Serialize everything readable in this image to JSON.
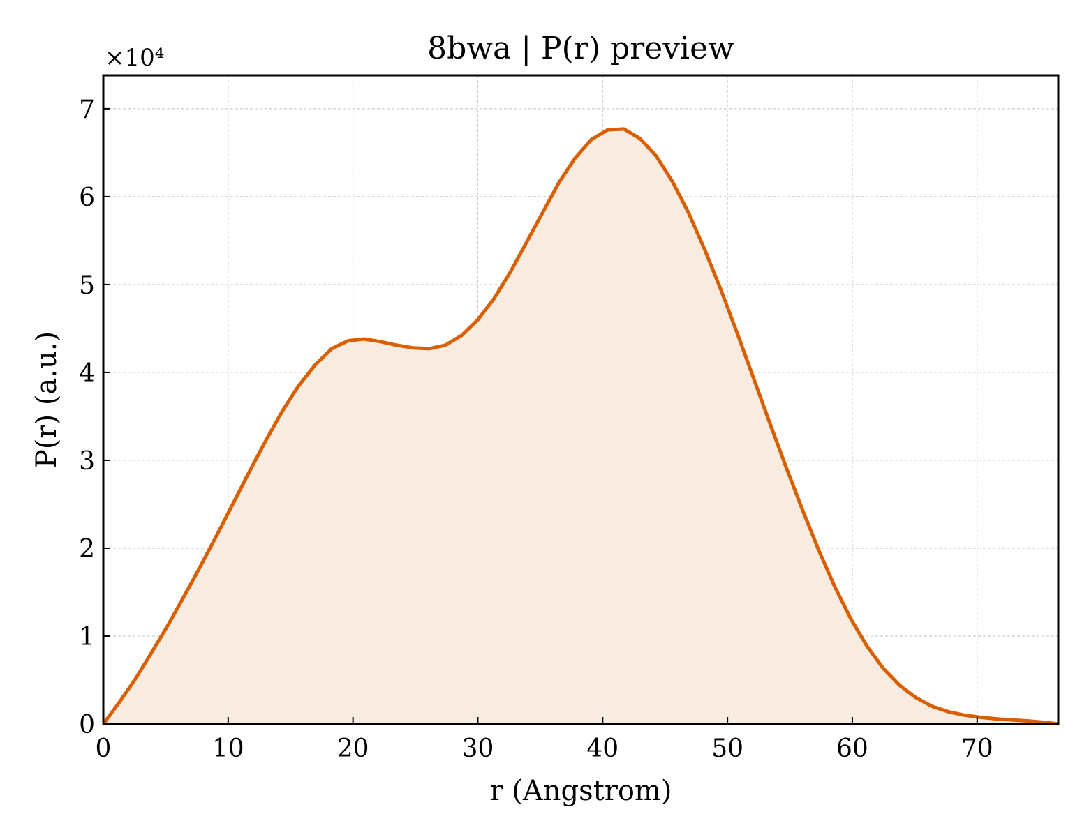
{
  "chart_data": {
    "type": "area",
    "title": "8bwa | P(r) preview",
    "xlabel": "r (Angstrom)",
    "ylabel": "P(r) (a.u.)",
    "y_multiplier_label": "×10⁴",
    "xlim": [
      0,
      76.5
    ],
    "ylim": [
      0,
      7.38
    ],
    "y_scale_factor": 10000,
    "xticks": [
      "0",
      "10",
      "20",
      "30",
      "40",
      "50",
      "60",
      "70"
    ],
    "yticks": [
      "0",
      "1",
      "2",
      "3",
      "4",
      "5",
      "6",
      "7"
    ],
    "grid": true,
    "line_color": "#d95f02",
    "fill_color": "#f8ebe0",
    "series": [
      {
        "x": [
          0,
          1.3,
          2.6,
          3.9,
          5.2,
          6.5,
          7.8,
          9.1,
          10.4,
          11.7,
          13.0,
          14.3,
          15.6,
          17.0,
          18.3,
          19.6,
          20.9,
          22.2,
          23.5,
          24.8,
          26.1,
          27.4,
          28.7,
          30.0,
          31.3,
          32.6,
          33.9,
          35.2,
          36.5,
          37.8,
          39.1,
          40.4,
          41.7,
          43.0,
          44.3,
          45.6,
          46.9,
          48.2,
          49.5,
          50.8,
          52.1,
          53.4,
          54.7,
          56.0,
          57.3,
          58.6,
          59.9,
          61.2,
          62.5,
          63.8,
          65.1,
          66.4,
          67.7,
          69.0,
          70.3,
          71.6,
          72.9,
          74.2,
          75.5,
          76.5
        ],
        "values": [
          0,
          0.25,
          0.52,
          0.82,
          1.13,
          1.46,
          1.8,
          2.15,
          2.51,
          2.87,
          3.22,
          3.55,
          3.84,
          4.09,
          4.27,
          4.36,
          4.38,
          4.35,
          4.31,
          4.28,
          4.27,
          4.31,
          4.42,
          4.6,
          4.84,
          5.14,
          5.48,
          5.82,
          6.16,
          6.44,
          6.65,
          6.76,
          6.77,
          6.66,
          6.46,
          6.17,
          5.81,
          5.39,
          4.93,
          4.44,
          3.93,
          3.42,
          2.92,
          2.44,
          1.98,
          1.56,
          1.19,
          0.88,
          0.63,
          0.44,
          0.3,
          0.2,
          0.14,
          0.1,
          0.075,
          0.058,
          0.045,
          0.033,
          0.018,
          0.0
        ]
      }
    ]
  }
}
